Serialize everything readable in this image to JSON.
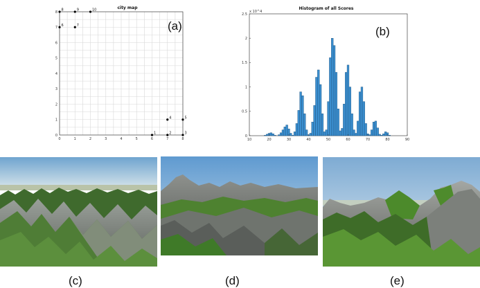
{
  "panels": {
    "a": "(a)",
    "b": "(b)",
    "c": "(c)",
    "d": "(d)",
    "e": "(e)"
  },
  "chart_data": [
    {
      "type": "scatter",
      "title": "city map",
      "xlabel": "",
      "ylabel": "",
      "xlim": [
        0,
        8
      ],
      "ylim": [
        0,
        8
      ],
      "xticks": [
        0,
        1,
        2,
        3,
        4,
        5,
        6,
        7,
        8
      ],
      "yticks": [
        0,
        1,
        2,
        3,
        4,
        5,
        6,
        7,
        8
      ],
      "grid": true,
      "points": [
        {
          "label": "1",
          "x": 6,
          "y": 0
        },
        {
          "label": "2",
          "x": 7,
          "y": 0
        },
        {
          "label": "3",
          "x": 8,
          "y": 0
        },
        {
          "label": "4",
          "x": 7,
          "y": 1
        },
        {
          "label": "5",
          "x": 8,
          "y": 1
        },
        {
          "label": "6",
          "x": 0,
          "y": 7
        },
        {
          "label": "7",
          "x": 1,
          "y": 7
        },
        {
          "label": "8",
          "x": 0,
          "y": 8
        },
        {
          "label": "9",
          "x": 1,
          "y": 8
        },
        {
          "label": "10",
          "x": 2,
          "y": 8
        }
      ],
      "color": "#000000"
    },
    {
      "type": "bar",
      "title": "Histogram of all Scores",
      "xlabel": "",
      "ylabel": "",
      "y_scale_note": "x 10^4",
      "xlim": [
        10,
        90
      ],
      "ylim": [
        0,
        2.5
      ],
      "xticks": [
        10,
        20,
        30,
        40,
        50,
        60,
        70,
        80,
        90
      ],
      "yticks": [
        0,
        0.5,
        1,
        1.5,
        2,
        2.5
      ],
      "grid": false,
      "bar_color": "#3b8fd0",
      "x": [
        18,
        19,
        20,
        21,
        22,
        23,
        24,
        25,
        26,
        27,
        28,
        29,
        30,
        31,
        32,
        33,
        34,
        35,
        36,
        37,
        38,
        39,
        40,
        41,
        42,
        43,
        44,
        45,
        46,
        47,
        48,
        49,
        50,
        51,
        52,
        53,
        54,
        55,
        56,
        57,
        58,
        59,
        60,
        61,
        62,
        63,
        64,
        65,
        66,
        67,
        68,
        69,
        70,
        71,
        72,
        73,
        74,
        75,
        76,
        77,
        78,
        79,
        80,
        81,
        82,
        83,
        84,
        85,
        86,
        87,
        88
      ],
      "values": [
        0.01,
        0.03,
        0.05,
        0.06,
        0.04,
        0.01,
        0.0,
        0.02,
        0.06,
        0.12,
        0.18,
        0.22,
        0.14,
        0.05,
        0.01,
        0.08,
        0.25,
        0.52,
        0.9,
        0.82,
        0.45,
        0.12,
        0.02,
        0.05,
        0.28,
        0.62,
        1.2,
        1.35,
        1.05,
        0.45,
        0.08,
        0.12,
        0.7,
        1.6,
        2.0,
        1.85,
        1.3,
        0.55,
        0.1,
        0.15,
        0.65,
        1.3,
        1.45,
        1.0,
        0.45,
        0.12,
        0.05,
        0.3,
        0.9,
        1.0,
        0.7,
        0.25,
        0.04,
        0.02,
        0.12,
        0.28,
        0.3,
        0.16,
        0.03,
        0.01,
        0.04,
        0.08,
        0.06,
        0.01,
        0.0,
        0.0,
        0.0,
        0.0,
        0.0,
        0.0,
        0.0
      ]
    }
  ]
}
